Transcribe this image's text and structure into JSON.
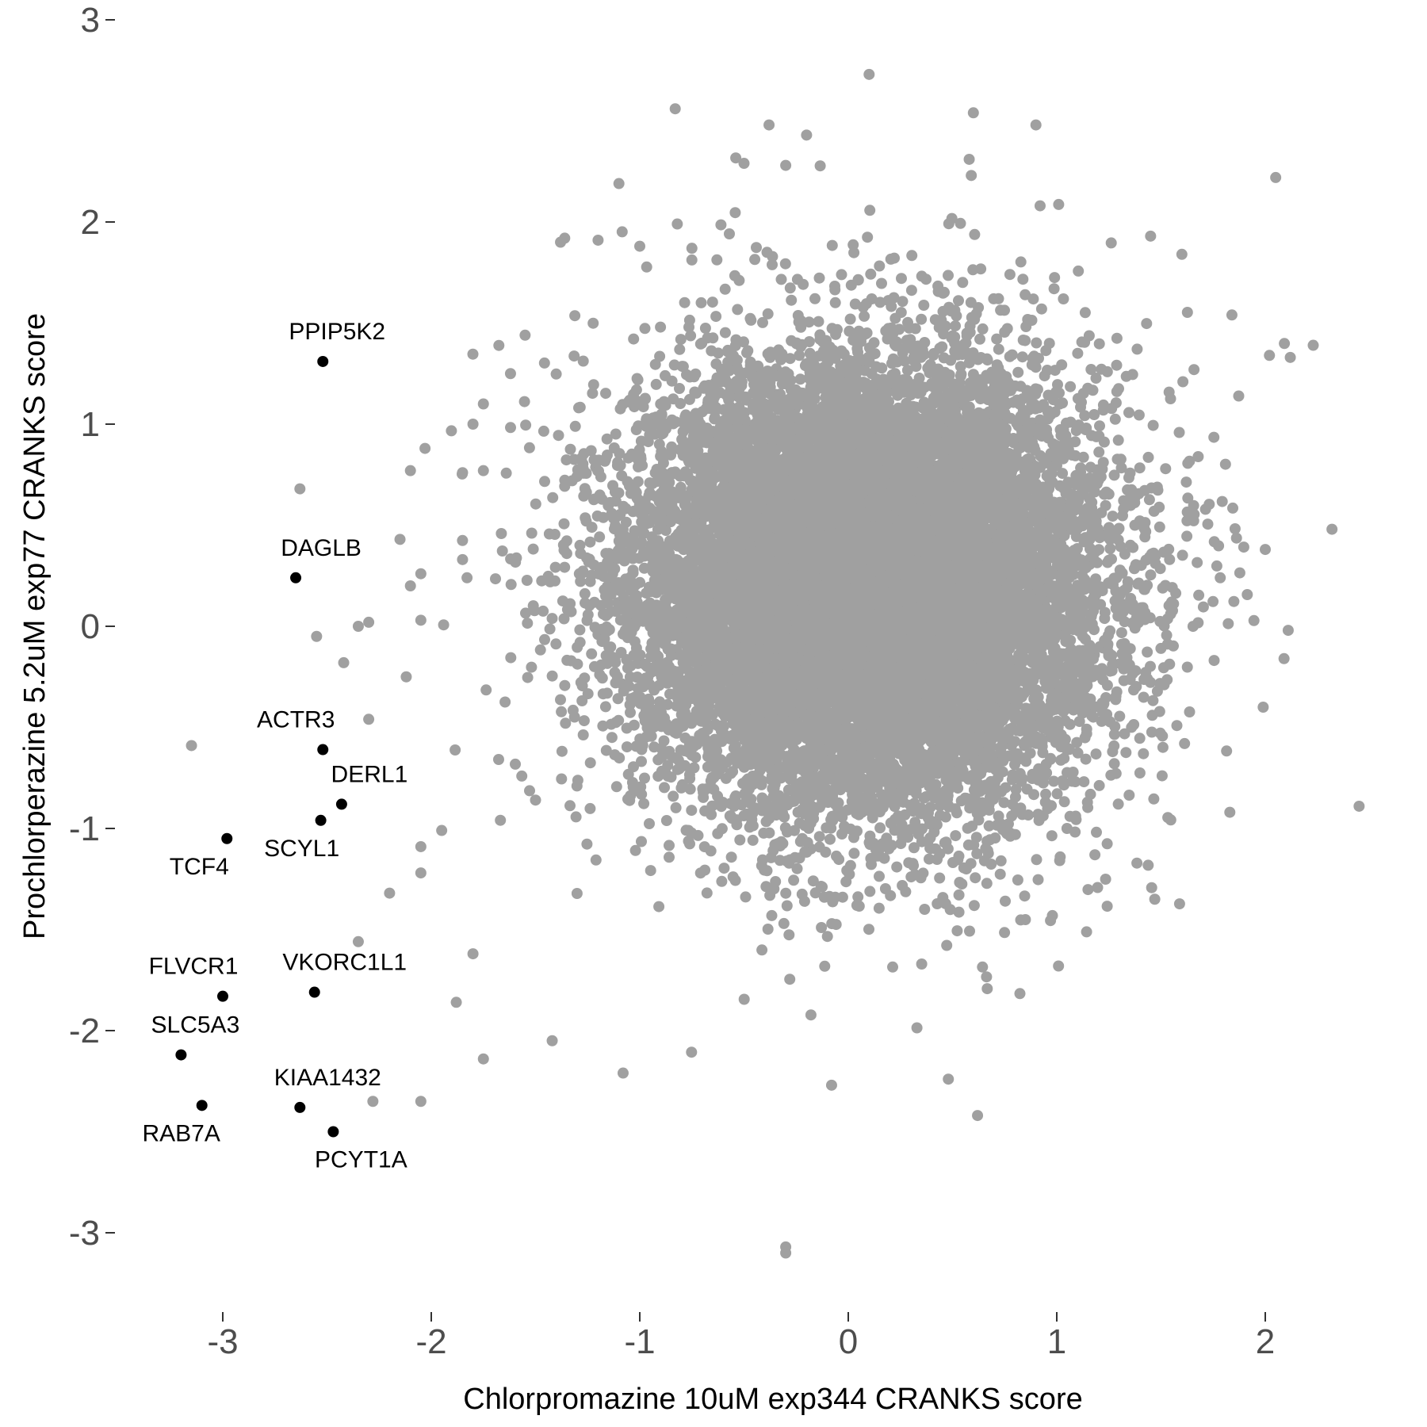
{
  "chart_data": {
    "type": "scatter",
    "xlabel": "Chlorpromazine 10uM exp344 CRANKS score",
    "ylabel": "Prochlorperazine 5.2uM exp77 CRANKS score",
    "xlim": [
      -3.45,
      2.6
    ],
    "ylim": [
      -3.45,
      3.1
    ],
    "x_ticks": [
      -3,
      -2,
      -1,
      0,
      1,
      2
    ],
    "y_ticks": [
      -3,
      -2,
      -1,
      0,
      1,
      2,
      3
    ],
    "grid": false,
    "legend": "none",
    "background_point_color": "#a0a0a0",
    "highlight_point_color": "#000000",
    "background_cloud": {
      "description": "dense cloud of several thousand gray points centred near (0.1, 0.2)",
      "approx_count": 15000,
      "center": [
        0.1,
        0.2
      ],
      "spread": [
        0.55,
        0.55
      ]
    },
    "background_outliers": [
      [
        0.1,
        2.73
      ],
      [
        -0.83,
        2.56
      ],
      [
        -0.38,
        2.48
      ],
      [
        0.6,
        2.54
      ],
      [
        0.9,
        2.48
      ],
      [
        -0.5,
        2.29
      ],
      [
        0.58,
        2.31
      ],
      [
        -0.3,
        2.28
      ],
      [
        -1.1,
        2.19
      ],
      [
        0.59,
        2.23
      ],
      [
        2.05,
        2.22
      ],
      [
        -0.2,
        2.43
      ],
      [
        0.92,
        2.08
      ],
      [
        -0.82,
        1.99
      ],
      [
        1.45,
        1.93
      ],
      [
        -1.36,
        1.92
      ],
      [
        -1.2,
        1.91
      ],
      [
        -1.38,
        1.9
      ],
      [
        -1.0,
        1.88
      ],
      [
        -0.75,
        1.87
      ],
      [
        1.6,
        1.84
      ],
      [
        2.02,
        1.34
      ],
      [
        2.12,
        1.33
      ],
      [
        2.23,
        1.39
      ],
      [
        1.84,
        1.54
      ],
      [
        2.0,
        0.38
      ],
      [
        2.32,
        0.48
      ],
      [
        2.11,
        -0.02
      ],
      [
        2.09,
        -0.16
      ],
      [
        1.99,
        -0.4
      ],
      [
        2.45,
        -0.89
      ],
      [
        1.83,
        -0.92
      ],
      [
        1.47,
        -1.35
      ],
      [
        0.48,
        -2.24
      ],
      [
        0.62,
        -2.42
      ],
      [
        -0.08,
        -2.27
      ],
      [
        -0.3,
        -3.07
      ],
      [
        -0.3,
        -3.1
      ],
      [
        -1.08,
        -2.21
      ],
      [
        -1.42,
        -2.05
      ],
      [
        -1.75,
        -2.14
      ],
      [
        -1.88,
        -1.86
      ],
      [
        -1.8,
        -1.62
      ],
      [
        -2.05,
        -2.35
      ],
      [
        -2.28,
        -2.35
      ],
      [
        -2.35,
        -1.56
      ],
      [
        -2.2,
        -1.32
      ],
      [
        -2.05,
        -1.22
      ],
      [
        -2.05,
        -1.09
      ],
      [
        -1.95,
        -1.01
      ],
      [
        -2.3,
        -0.46
      ],
      [
        -2.42,
        -0.18
      ],
      [
        -2.35,
        0.0
      ],
      [
        -2.3,
        0.02
      ],
      [
        -2.12,
        -0.25
      ],
      [
        -2.05,
        0.03
      ],
      [
        -2.55,
        -0.05
      ],
      [
        -2.05,
        0.26
      ],
      [
        -2.1,
        0.2
      ],
      [
        -2.15,
        0.43
      ],
      [
        -2.1,
        0.77
      ],
      [
        -2.03,
        0.88
      ],
      [
        -2.63,
        0.68
      ],
      [
        -3.15,
        -0.59
      ],
      [
        -1.85,
        0.33
      ],
      [
        -1.85,
        0.76
      ],
      [
        -1.75,
        0.77
      ],
      [
        -1.8,
        1.0
      ],
      [
        -1.75,
        1.1
      ],
      [
        -1.62,
        1.25
      ],
      [
        -1.55,
        1.44
      ]
    ],
    "highlighted_points": [
      {
        "label": "PPIP5K2",
        "x": -2.52,
        "y": 1.31
      },
      {
        "label": "DAGLB",
        "x": -2.65,
        "y": 0.24
      },
      {
        "label": "ACTR3",
        "x": -2.52,
        "y": -0.61
      },
      {
        "label": "DERL1",
        "x": -2.43,
        "y": -0.88
      },
      {
        "label": "SCYL1",
        "x": -2.53,
        "y": -0.96
      },
      {
        "label": "TCF4",
        "x": -2.98,
        "y": -1.05
      },
      {
        "label": "FLVCR1",
        "x": -3.0,
        "y": -1.83
      },
      {
        "label": "VKORC1L1",
        "x": -2.56,
        "y": -1.81
      },
      {
        "label": "SLC5A3",
        "x": -3.2,
        "y": -2.12
      },
      {
        "label": "RAB7A",
        "x": -3.1,
        "y": -2.37
      },
      {
        "label": "KIAA1432",
        "x": -2.63,
        "y": -2.38
      },
      {
        "label": "PCYT1A",
        "x": -2.47,
        "y": -2.5
      }
    ]
  }
}
